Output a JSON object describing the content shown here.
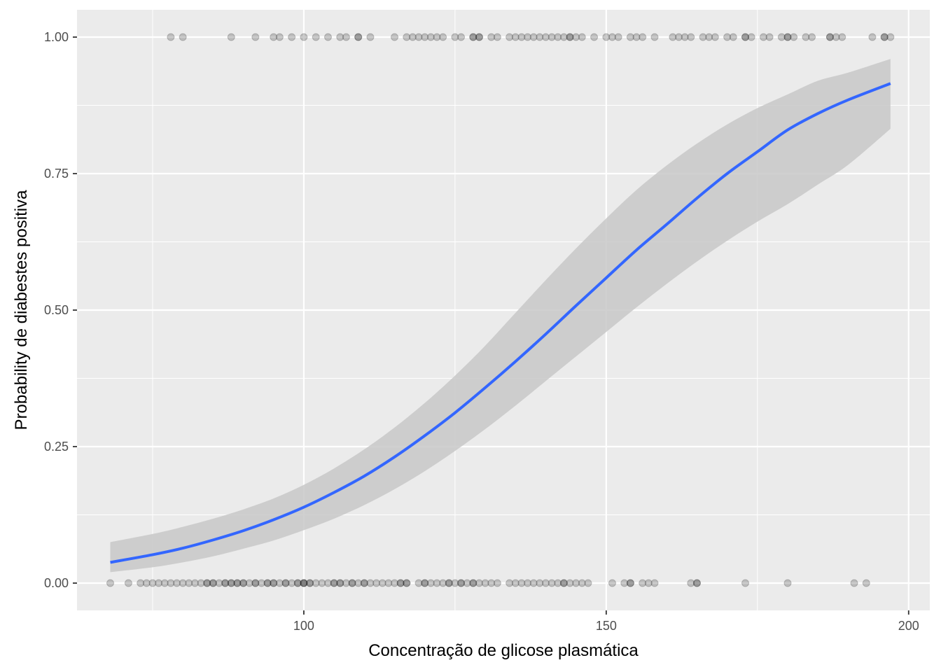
{
  "chart_data": {
    "type": "scatter",
    "title": "",
    "xlabel": "Concentração de glicose plasmática",
    "ylabel": "Probability de diabestes positiva",
    "xlim": [
      62.5,
      203.5
    ],
    "ylim": [
      -0.05,
      1.05
    ],
    "x_ticks": [
      100,
      150,
      200
    ],
    "x_tick_labels": [
      "100",
      "150",
      "200"
    ],
    "y_ticks": [
      0,
      0.25,
      0.5,
      0.75,
      1.0
    ],
    "y_tick_labels": [
      "0.00",
      "0.25",
      "0.50",
      "0.75",
      "1.00"
    ],
    "grid": true,
    "legend": "none",
    "colors": {
      "panel_background": "#ebebeb",
      "grid": "#ffffff",
      "points": "#000000",
      "fit_line": "#3366ff",
      "confidence_band": "#c8c8c8"
    },
    "series": [
      {
        "name": "positive",
        "kind": "points",
        "y": 1,
        "x": [
          78,
          80,
          88,
          92,
          95,
          96,
          98,
          100,
          102,
          104,
          106,
          107,
          109,
          109,
          111,
          115,
          117,
          118,
          119,
          120,
          121,
          122,
          123,
          125,
          126,
          128,
          128,
          129,
          129,
          131,
          132,
          134,
          135,
          136,
          137,
          138,
          139,
          140,
          141,
          142,
          143,
          144,
          144,
          145,
          146,
          148,
          150,
          151,
          152,
          154,
          155,
          156,
          158,
          161,
          162,
          163,
          164,
          166,
          167,
          168,
          170,
          171,
          173,
          173,
          174,
          176,
          177,
          179,
          180,
          180,
          181,
          183,
          184,
          187,
          187,
          188,
          189,
          194,
          196,
          196,
          197
        ]
      },
      {
        "name": "negative",
        "kind": "points",
        "y": 0,
        "x": [
          68,
          71,
          73,
          74,
          75,
          76,
          77,
          78,
          79,
          80,
          81,
          82,
          83,
          84,
          84,
          85,
          85,
          86,
          87,
          87,
          88,
          88,
          89,
          89,
          90,
          90,
          91,
          92,
          92,
          93,
          94,
          94,
          95,
          95,
          96,
          97,
          97,
          98,
          99,
          99,
          100,
          100,
          100,
          101,
          101,
          102,
          103,
          104,
          105,
          105,
          106,
          106,
          107,
          108,
          108,
          109,
          110,
          110,
          111,
          112,
          113,
          114,
          115,
          116,
          116,
          117,
          117,
          119,
          120,
          120,
          121,
          122,
          123,
          124,
          124,
          125,
          126,
          126,
          127,
          128,
          128,
          129,
          130,
          131,
          132,
          134,
          135,
          136,
          137,
          138,
          139,
          140,
          141,
          142,
          143,
          143,
          144,
          145,
          146,
          147,
          151,
          153,
          154,
          154,
          156,
          157,
          158,
          164,
          165,
          165,
          173,
          180,
          191,
          193
        ]
      },
      {
        "name": "logistic fit",
        "kind": "line",
        "x": [
          68,
          75,
          80,
          85,
          90,
          95,
          100,
          105,
          110,
          115,
          120,
          125,
          130,
          135,
          140,
          145,
          150,
          155,
          160,
          165,
          170,
          175,
          180,
          185,
          190,
          197
        ],
        "y": [
          0.038,
          0.052,
          0.064,
          0.079,
          0.096,
          0.116,
          0.139,
          0.166,
          0.196,
          0.231,
          0.27,
          0.312,
          0.358,
          0.406,
          0.456,
          0.508,
          0.559,
          0.61,
          0.657,
          0.705,
          0.75,
          0.79,
          0.83,
          0.86,
          0.885,
          0.915
        ],
        "lower": [
          0.02,
          0.029,
          0.038,
          0.049,
          0.063,
          0.078,
          0.097,
          0.118,
          0.143,
          0.172,
          0.205,
          0.242,
          0.282,
          0.325,
          0.37,
          0.415,
          0.46,
          0.505,
          0.548,
          0.589,
          0.627,
          0.662,
          0.694,
          0.73,
          0.766,
          0.832
        ],
        "upper": [
          0.075,
          0.09,
          0.103,
          0.118,
          0.135,
          0.155,
          0.18,
          0.21,
          0.245,
          0.285,
          0.33,
          0.38,
          0.435,
          0.495,
          0.555,
          0.613,
          0.668,
          0.72,
          0.765,
          0.805,
          0.84,
          0.87,
          0.895,
          0.92,
          0.935,
          0.96
        ]
      }
    ]
  }
}
